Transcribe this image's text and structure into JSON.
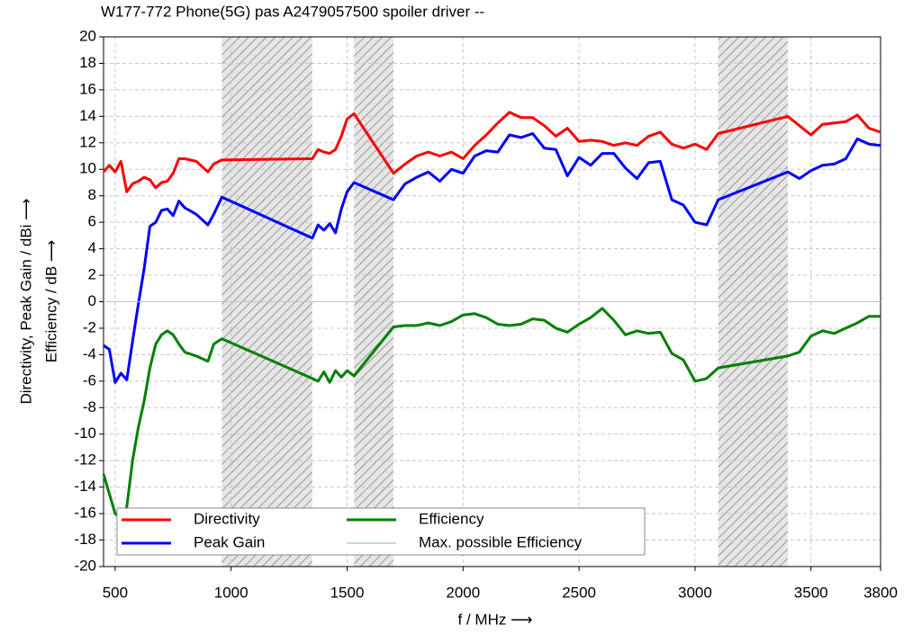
{
  "chart_data": {
    "type": "line",
    "title": "W177-772 Phone(5G) pas A2479057500 spoiler driver --",
    "x_label": "f / MHz ⟶",
    "y_label": [
      "Directivity, Peak Gain / dBi ⟶",
      "Efficiency / dB ⟶"
    ],
    "x": [
      450,
      475,
      500,
      525,
      550,
      575,
      600,
      625,
      650,
      675,
      700,
      725,
      750,
      775,
      800,
      850,
      900,
      925,
      960,
      1350,
      1375,
      1400,
      1425,
      1450,
      1475,
      1500,
      1530,
      1700,
      1750,
      1800,
      1850,
      1900,
      1950,
      2000,
      2050,
      2100,
      2150,
      2200,
      2250,
      2300,
      2350,
      2400,
      2450,
      2500,
      2550,
      2600,
      2650,
      2700,
      2750,
      2800,
      2850,
      2900,
      2950,
      3000,
      3050,
      3100,
      3400,
      3450,
      3500,
      3550,
      3600,
      3650,
      3700,
      3750,
      3800
    ],
    "series": [
      {
        "name": "Directivity",
        "color": "#ff0000",
        "values": [
          9.8,
          10.3,
          9.8,
          10.6,
          8.3,
          8.9,
          9.1,
          9.4,
          9.2,
          8.6,
          9.0,
          9.1,
          9.7,
          10.8,
          10.8,
          10.6,
          9.8,
          10.4,
          10.7,
          10.8,
          11.5,
          11.3,
          11.2,
          11.5,
          12.5,
          13.8,
          14.2,
          9.7,
          10.4,
          11.0,
          11.3,
          11.0,
          11.3,
          10.8,
          11.8,
          12.6,
          13.5,
          14.3,
          13.9,
          13.9,
          13.3,
          12.5,
          13.1,
          12.1,
          12.2,
          12.1,
          11.8,
          12.0,
          11.8,
          12.5,
          12.8,
          11.9,
          11.6,
          11.9,
          11.5,
          12.7,
          14.0,
          13.3,
          12.6,
          13.4,
          13.5,
          13.6,
          14.1,
          13.1,
          12.8
        ]
      },
      {
        "name": "Peak Gain",
        "color": "#0000ff",
        "values": [
          -3.3,
          -3.6,
          -6.1,
          -5.4,
          -5.9,
          -3.0,
          -0.2,
          2.5,
          5.7,
          6.0,
          6.9,
          7.0,
          6.5,
          7.6,
          7.1,
          6.6,
          5.8,
          6.6,
          7.9,
          4.8,
          5.8,
          5.4,
          5.9,
          5.2,
          7.0,
          8.3,
          9.0,
          7.7,
          8.9,
          9.4,
          9.8,
          9.1,
          10.0,
          9.7,
          11.0,
          11.4,
          11.3,
          12.6,
          12.4,
          12.7,
          11.6,
          11.5,
          9.5,
          10.9,
          10.3,
          11.2,
          11.2,
          10.1,
          9.3,
          10.5,
          10.6,
          7.7,
          7.3,
          6.0,
          5.8,
          7.7,
          9.8,
          9.3,
          9.9,
          10.3,
          10.4,
          10.8,
          12.3,
          11.9,
          11.8
        ]
      },
      {
        "name": "Efficiency",
        "color": "#008000",
        "values": [
          -13.0,
          -14.5,
          -16.0,
          -16.3,
          -15.5,
          -12.0,
          -9.5,
          -7.5,
          -5.0,
          -3.2,
          -2.5,
          -2.2,
          -2.5,
          -3.2,
          -3.8,
          -4.1,
          -4.5,
          -3.2,
          -2.8,
          -5.8,
          -6.0,
          -5.3,
          -6.1,
          -5.2,
          -5.7,
          -5.2,
          -5.6,
          -1.9,
          -1.8,
          -1.8,
          -1.6,
          -1.8,
          -1.5,
          -1.0,
          -0.9,
          -1.2,
          -1.7,
          -1.8,
          -1.7,
          -1.3,
          -1.4,
          -2.0,
          -2.3,
          -1.7,
          -1.2,
          -0.5,
          -1.4,
          -2.5,
          -2.2,
          -2.4,
          -2.3,
          -3.9,
          -4.4,
          -6.0,
          -5.8,
          -5.0,
          -4.1,
          -3.8,
          -2.6,
          -2.2,
          -2.4,
          -2.0,
          -1.6,
          -1.1,
          -1.1
        ]
      },
      {
        "name": "Max. possible Efficiency",
        "color": "#b4cfb4",
        "values": [
          0,
          0,
          0,
          0,
          0,
          0,
          0,
          0,
          0,
          0,
          0,
          0,
          0,
          0,
          0,
          0,
          0,
          0,
          0,
          0,
          0,
          0,
          0,
          0,
          0,
          0,
          0,
          0,
          0,
          0,
          0,
          0,
          0,
          0,
          0,
          0,
          0,
          0,
          0,
          0,
          0,
          0,
          0,
          0,
          0,
          0,
          0,
          0,
          0,
          0,
          0,
          0,
          0,
          0,
          0,
          0,
          0,
          0,
          0,
          0,
          0,
          0,
          0,
          0,
          0
        ]
      }
    ],
    "bands": [
      [
        960,
        1350
      ],
      [
        1530,
        1700
      ],
      [
        3100,
        3400
      ]
    ],
    "xlim": [
      450,
      3800
    ],
    "xticks": [
      500,
      1000,
      1500,
      2000,
      2500,
      3000,
      3500,
      3800
    ],
    "ylim": [
      -20,
      20
    ],
    "yticks": [
      -20,
      -18,
      -16,
      -14,
      -12,
      -10,
      -8,
      -6,
      -4,
      -2,
      0,
      2,
      4,
      6,
      8,
      10,
      12,
      14,
      16,
      18,
      20
    ],
    "grid": true,
    "legend": "lower left"
  }
}
